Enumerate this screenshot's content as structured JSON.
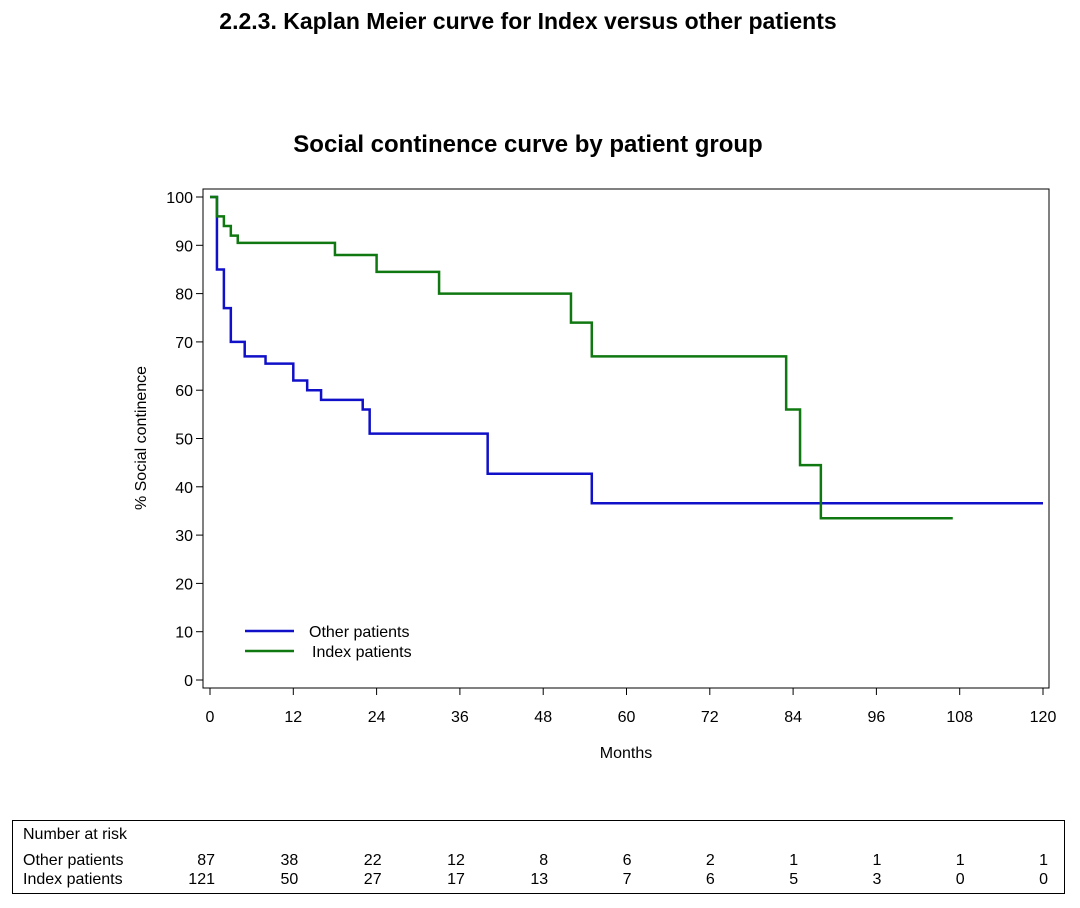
{
  "heading": "2.2.3. Kaplan Meier curve for Index versus other patients",
  "chart_data": {
    "type": "line",
    "step": true,
    "title": "Social continence curve by patient group",
    "xlabel": "Months",
    "ylabel": "% Social continence",
    "xlim": [
      0,
      120
    ],
    "ylim": [
      0,
      100
    ],
    "xticks": [
      0,
      12,
      24,
      36,
      48,
      60,
      72,
      84,
      96,
      108,
      120
    ],
    "yticks": [
      0,
      10,
      20,
      30,
      40,
      50,
      60,
      70,
      80,
      90,
      100
    ],
    "grid": false,
    "legend": "bottom-left",
    "series": [
      {
        "name": "Other patients",
        "color": "#1010c8",
        "x": [
          0,
          1,
          2,
          3,
          5,
          8,
          12,
          14,
          16,
          22,
          23,
          40,
          55,
          120
        ],
        "y": [
          100,
          85,
          77,
          70,
          67,
          65.5,
          62,
          60,
          58,
          56,
          51,
          42.7,
          36.6,
          36.6
        ]
      },
      {
        "name": "Index patients",
        "color": "#107810",
        "x": [
          0,
          1,
          2,
          3,
          4,
          18,
          24,
          33,
          52,
          55,
          83,
          85,
          88,
          107
        ],
        "y": [
          100,
          96,
          94,
          92,
          90.5,
          88,
          84.5,
          80,
          74,
          67,
          56,
          44.5,
          33.5,
          33.5
        ]
      }
    ]
  },
  "risk_table": {
    "title": "Number at risk",
    "timepoints": [
      0,
      12,
      24,
      36,
      48,
      60,
      72,
      84,
      96,
      108,
      120
    ],
    "rows": [
      {
        "label": "Other patients",
        "values": [
          "87",
          "38",
          "22",
          "12",
          "8",
          "6",
          "2",
          "1",
          "1",
          "1",
          "1"
        ]
      },
      {
        "label": "Index patients",
        "values": [
          "121",
          "50",
          "27",
          "17",
          "13",
          "7",
          "6",
          "5",
          "3",
          "0",
          "0"
        ]
      }
    ]
  }
}
